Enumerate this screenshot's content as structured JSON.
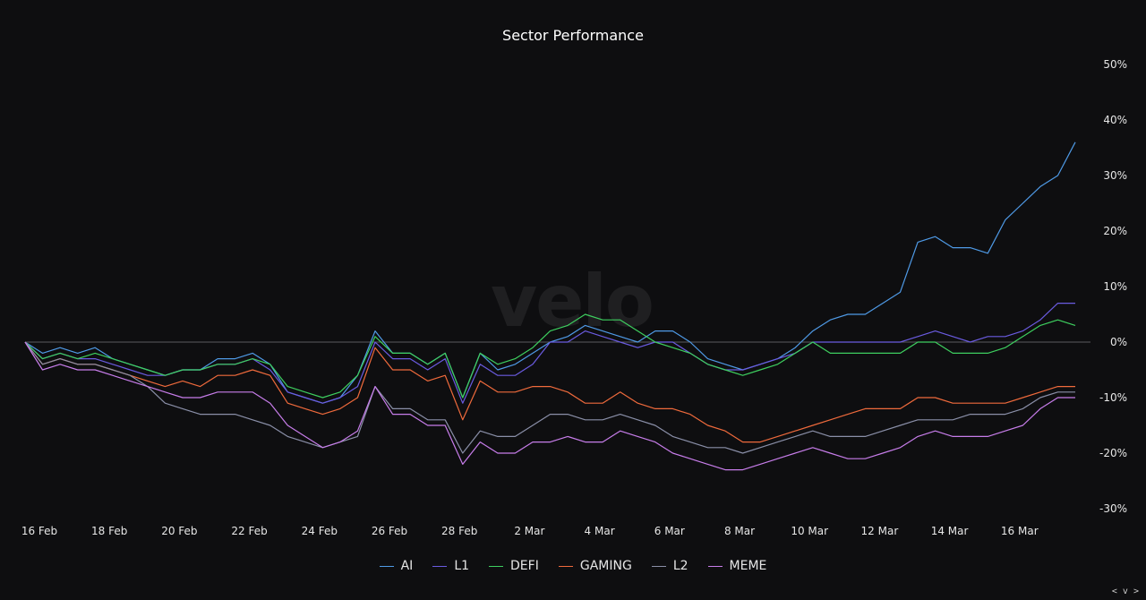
{
  "chart_data": {
    "type": "line",
    "title": "Sector Performance",
    "watermark": "velo",
    "xlabel": "",
    "ylabel": "",
    "ylim": [
      -30,
      50
    ],
    "yticks": [
      "50%",
      "40%",
      "30%",
      "20%",
      "10%",
      "0%",
      "-10%",
      "-20%",
      "-30%"
    ],
    "ytick_values": [
      50,
      40,
      30,
      20,
      10,
      0,
      -10,
      -20,
      -30
    ],
    "xticks": [
      "16 Feb",
      "18 Feb",
      "20 Feb",
      "22 Feb",
      "24 Feb",
      "26 Feb",
      "28 Feb",
      "2 Mar",
      "4 Mar",
      "6 Mar",
      "8 Mar",
      "10 Mar",
      "12 Mar",
      "14 Mar",
      "16 Mar"
    ],
    "xtick_days": [
      0,
      2,
      4,
      6,
      8,
      10,
      12,
      14,
      16,
      18,
      20,
      22,
      24,
      26,
      28
    ],
    "x_range_days": [
      0,
      30
    ],
    "x_days": [
      0,
      0.5,
      1,
      1.5,
      2,
      2.5,
      3,
      3.5,
      4,
      4.5,
      5,
      5.5,
      6,
      6.5,
      7,
      7.5,
      8,
      8.5,
      9,
      9.5,
      10,
      10.5,
      11,
      11.5,
      12,
      12.5,
      13,
      13.5,
      14,
      14.5,
      15,
      15.5,
      16,
      16.5,
      17,
      17.5,
      18,
      18.5,
      19,
      19.5,
      20,
      20.5,
      21,
      21.5,
      22,
      22.5,
      23,
      23.5,
      24,
      24.5,
      25,
      25.5,
      26,
      26.5,
      27,
      27.5,
      28,
      28.5,
      29,
      29.5,
      30
    ],
    "legend_position": "bottom",
    "series": [
      {
        "name": "AI",
        "color": "#4f9ae6",
        "values": [
          0,
          -2,
          -1,
          -2,
          -1,
          -3,
          -4,
          -5,
          -6,
          -5,
          -5,
          -3,
          -3,
          -2,
          -4,
          -9,
          -10,
          -11,
          -10,
          -6,
          2,
          -2,
          -2,
          -4,
          -2,
          -10,
          -2,
          -5,
          -4,
          -2,
          0,
          1,
          3,
          2,
          1,
          0,
          2,
          2,
          0,
          -3,
          -4,
          -5,
          -4,
          -3,
          -1,
          2,
          4,
          5,
          5,
          7,
          9,
          18,
          19,
          17,
          17,
          16,
          22,
          25,
          28,
          30,
          36
        ]
      },
      {
        "name": "L1",
        "color": "#6a5be0",
        "values": [
          0,
          -3,
          -2,
          -3,
          -3,
          -4,
          -5,
          -6,
          -6,
          -5,
          -5,
          -4,
          -4,
          -3,
          -5,
          -9,
          -10,
          -11,
          -10,
          -8,
          0,
          -3,
          -3,
          -5,
          -3,
          -11,
          -4,
          -6,
          -6,
          -4,
          0,
          0,
          2,
          1,
          0,
          -1,
          0,
          0,
          -2,
          -4,
          -5,
          -5,
          -4,
          -3,
          -2,
          0,
          0,
          0,
          0,
          0,
          0,
          1,
          2,
          1,
          0,
          1,
          1,
          2,
          4,
          7,
          7
        ]
      },
      {
        "name": "DEFI",
        "color": "#3ecf5f",
        "values": [
          0,
          -3,
          -2,
          -3,
          -2,
          -3,
          -4,
          -5,
          -6,
          -5,
          -5,
          -4,
          -4,
          -3,
          -4,
          -8,
          -9,
          -10,
          -9,
          -6,
          1,
          -2,
          -2,
          -4,
          -2,
          -10,
          -2,
          -4,
          -3,
          -1,
          2,
          3,
          5,
          4,
          4,
          2,
          0,
          -1,
          -2,
          -4,
          -5,
          -6,
          -5,
          -4,
          -2,
          0,
          -2,
          -2,
          -2,
          -2,
          -2,
          0,
          0,
          -2,
          -2,
          -2,
          -1,
          1,
          3,
          4,
          3
        ]
      },
      {
        "name": "GAMING",
        "color": "#ef6a3c",
        "values": [
          0,
          -4,
          -3,
          -4,
          -4,
          -5,
          -6,
          -7,
          -8,
          -7,
          -8,
          -6,
          -6,
          -5,
          -6,
          -11,
          -12,
          -13,
          -12,
          -10,
          -1,
          -5,
          -5,
          -7,
          -6,
          -14,
          -7,
          -9,
          -9,
          -8,
          -8,
          -9,
          -11,
          -11,
          -9,
          -11,
          -12,
          -12,
          -13,
          -15,
          -16,
          -18,
          -18,
          -17,
          -16,
          -15,
          -14,
          -13,
          -12,
          -12,
          -12,
          -10,
          -10,
          -11,
          -11,
          -11,
          -11,
          -10,
          -9,
          -8,
          -8
        ]
      },
      {
        "name": "L2",
        "color": "#8a8fa8",
        "values": [
          0,
          -4,
          -3,
          -4,
          -4,
          -5,
          -6,
          -8,
          -11,
          -12,
          -13,
          -13,
          -13,
          -14,
          -15,
          -17,
          -18,
          -19,
          -18,
          -17,
          -8,
          -12,
          -12,
          -14,
          -14,
          -20,
          -16,
          -17,
          -17,
          -15,
          -13,
          -13,
          -14,
          -14,
          -13,
          -14,
          -15,
          -17,
          -18,
          -19,
          -19,
          -20,
          -19,
          -18,
          -17,
          -16,
          -17,
          -17,
          -17,
          -16,
          -15,
          -14,
          -14,
          -14,
          -13,
          -13,
          -13,
          -12,
          -10,
          -9,
          -9
        ]
      },
      {
        "name": "MEME",
        "color": "#c77dea",
        "values": [
          0,
          -5,
          -4,
          -5,
          -5,
          -6,
          -7,
          -8,
          -9,
          -10,
          -10,
          -9,
          -9,
          -9,
          -11,
          -15,
          -17,
          -19,
          -18,
          -16,
          -8,
          -13,
          -13,
          -15,
          -15,
          -22,
          -18,
          -20,
          -20,
          -18,
          -18,
          -17,
          -18,
          -18,
          -16,
          -17,
          -18,
          -20,
          -21,
          -22,
          -23,
          -23,
          -22,
          -21,
          -20,
          -19,
          -20,
          -21,
          -21,
          -20,
          -19,
          -17,
          -16,
          -17,
          -17,
          -17,
          -16,
          -15,
          -12,
          -10,
          -10
        ]
      }
    ]
  },
  "nav": {
    "arrows": "< v >"
  }
}
